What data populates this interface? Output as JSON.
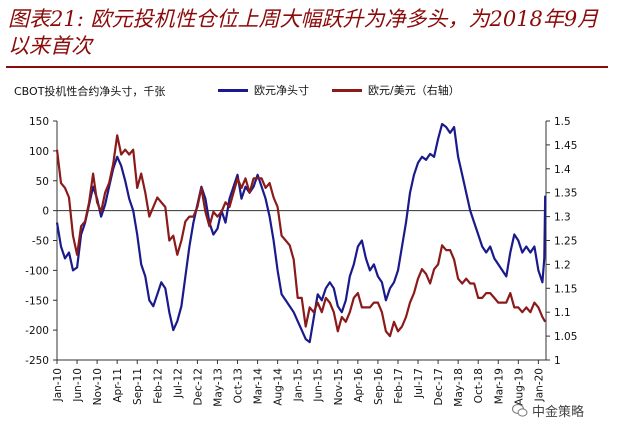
{
  "header": {
    "title": "图表21: 欧元投机性仓位上周大幅跃升为净多头，为2018年9月以来首次"
  },
  "legend_items": [
    {
      "label": "欧元净头寸",
      "color": "#1a1a8c"
    },
    {
      "label": "欧元/美元（右轴）",
      "color": "#8b1a1a"
    }
  ],
  "watermark": {
    "text": "中金策略",
    "icon": "wechat-icon"
  },
  "chart_data": {
    "type": "line",
    "title": "图表21: 欧元投机性仓位上周大幅跃升为净多头，为2018年9月以来首次",
    "ylabel": "CBOT投机性合约净头寸，千张",
    "y2label": "",
    "ylim": [
      -250,
      150
    ],
    "y2lim": [
      1.0,
      1.5
    ],
    "yticks": [
      150,
      100,
      50,
      0,
      -50,
      -100,
      -150,
      -200,
      -250
    ],
    "y2ticks": [
      1.5,
      1.45,
      1.4,
      1.35,
      1.3,
      1.25,
      1.2,
      1.15,
      1.1,
      1.05,
      1
    ],
    "x_range": [
      "2010-01",
      "2020-02"
    ],
    "x_tick_labels": [
      "Jan-10",
      "Jun-10",
      "Nov-10",
      "Apr-11",
      "Sep-11",
      "Feb-12",
      "Jul-12",
      "Dec-12",
      "May-13",
      "Oct-13",
      "Mar-14",
      "Aug-14",
      "Jan-15",
      "Jun-15",
      "Nov-15",
      "Apr-16",
      "Sep-16",
      "Feb-17",
      "Jul-17",
      "Dec-17",
      "May-18",
      "Oct-18",
      "Mar-19",
      "Aug-19",
      "Jan-20"
    ],
    "grid": false,
    "legend_position": "top",
    "series": [
      {
        "name": "欧元净头寸",
        "axis": "left",
        "color": "#1a1a8c",
        "points": [
          [
            "2010-01",
            -20
          ],
          [
            "2010-02",
            -60
          ],
          [
            "2010-03",
            -80
          ],
          [
            "2010-04",
            -70
          ],
          [
            "2010-05",
            -100
          ],
          [
            "2010-06",
            -95
          ],
          [
            "2010-07",
            -40
          ],
          [
            "2010-08",
            -20
          ],
          [
            "2010-09",
            10
          ],
          [
            "2010-10",
            40
          ],
          [
            "2010-11",
            20
          ],
          [
            "2010-12",
            -10
          ],
          [
            "2011-01",
            10
          ],
          [
            "2011-02",
            40
          ],
          [
            "2011-03",
            70
          ],
          [
            "2011-04",
            90
          ],
          [
            "2011-05",
            75
          ],
          [
            "2011-06",
            50
          ],
          [
            "2011-07",
            20
          ],
          [
            "2011-08",
            0
          ],
          [
            "2011-09",
            -40
          ],
          [
            "2011-10",
            -90
          ],
          [
            "2011-11",
            -110
          ],
          [
            "2011-12",
            -150
          ],
          [
            "2012-01",
            -160
          ],
          [
            "2012-02",
            -140
          ],
          [
            "2012-03",
            -120
          ],
          [
            "2012-04",
            -130
          ],
          [
            "2012-05",
            -170
          ],
          [
            "2012-06",
            -200
          ],
          [
            "2012-07",
            -185
          ],
          [
            "2012-08",
            -160
          ],
          [
            "2012-09",
            -110
          ],
          [
            "2012-10",
            -60
          ],
          [
            "2012-11",
            -20
          ],
          [
            "2012-12",
            10
          ],
          [
            "2013-01",
            40
          ],
          [
            "2013-02",
            20
          ],
          [
            "2013-03",
            -20
          ],
          [
            "2013-04",
            -40
          ],
          [
            "2013-05",
            -30
          ],
          [
            "2013-06",
            0
          ],
          [
            "2013-07",
            -20
          ],
          [
            "2013-08",
            20
          ],
          [
            "2013-09",
            40
          ],
          [
            "2013-10",
            60
          ],
          [
            "2013-11",
            20
          ],
          [
            "2013-12",
            40
          ],
          [
            "2014-01",
            30
          ],
          [
            "2014-02",
            40
          ],
          [
            "2014-03",
            60
          ],
          [
            "2014-04",
            40
          ],
          [
            "2014-05",
            20
          ],
          [
            "2014-06",
            -10
          ],
          [
            "2014-07",
            -50
          ],
          [
            "2014-08",
            -100
          ],
          [
            "2014-09",
            -140
          ],
          [
            "2014-10",
            -150
          ],
          [
            "2014-11",
            -160
          ],
          [
            "2014-12",
            -170
          ],
          [
            "2015-01",
            -185
          ],
          [
            "2015-02",
            -200
          ],
          [
            "2015-03",
            -215
          ],
          [
            "2015-04",
            -220
          ],
          [
            "2015-05",
            -180
          ],
          [
            "2015-06",
            -140
          ],
          [
            "2015-07",
            -150
          ],
          [
            "2015-08",
            -130
          ],
          [
            "2015-09",
            -120
          ],
          [
            "2015-10",
            -130
          ],
          [
            "2015-11",
            -160
          ],
          [
            "2015-12",
            -170
          ],
          [
            "2016-01",
            -150
          ],
          [
            "2016-02",
            -110
          ],
          [
            "2016-03",
            -90
          ],
          [
            "2016-04",
            -60
          ],
          [
            "2016-05",
            -50
          ],
          [
            "2016-06",
            -80
          ],
          [
            "2016-07",
            -100
          ],
          [
            "2016-08",
            -90
          ],
          [
            "2016-09",
            -110
          ],
          [
            "2016-10",
            -120
          ],
          [
            "2016-11",
            -150
          ],
          [
            "2016-12",
            -130
          ],
          [
            "2017-01",
            -120
          ],
          [
            "2017-02",
            -100
          ],
          [
            "2017-03",
            -60
          ],
          [
            "2017-04",
            -20
          ],
          [
            "2017-05",
            30
          ],
          [
            "2017-06",
            60
          ],
          [
            "2017-07",
            80
          ],
          [
            "2017-08",
            90
          ],
          [
            "2017-09",
            85
          ],
          [
            "2017-10",
            95
          ],
          [
            "2017-11",
            90
          ],
          [
            "2017-12",
            120
          ],
          [
            "2018-01",
            145
          ],
          [
            "2018-02",
            140
          ],
          [
            "2018-03",
            130
          ],
          [
            "2018-04",
            140
          ],
          [
            "2018-05",
            90
          ],
          [
            "2018-06",
            60
          ],
          [
            "2018-07",
            30
          ],
          [
            "2018-08",
            0
          ],
          [
            "2018-09",
            -20
          ],
          [
            "2018-10",
            -40
          ],
          [
            "2018-11",
            -60
          ],
          [
            "2018-12",
            -70
          ],
          [
            "2019-01",
            -60
          ],
          [
            "2019-02",
            -80
          ],
          [
            "2019-03",
            -90
          ],
          [
            "2019-04",
            -100
          ],
          [
            "2019-05",
            -110
          ],
          [
            "2019-06",
            -70
          ],
          [
            "2019-07",
            -40
          ],
          [
            "2019-08",
            -50
          ],
          [
            "2019-09",
            -70
          ],
          [
            "2019-10",
            -60
          ],
          [
            "2019-11",
            -70
          ],
          [
            "2019-12",
            -60
          ],
          [
            "2020-01",
            -100
          ],
          [
            "2020-02",
            -120
          ],
          [
            "2020-02-15",
            -80
          ],
          [
            "2020-02-22",
            25
          ]
        ]
      },
      {
        "name": "欧元/美元（右轴）",
        "axis": "right",
        "color": "#8b1a1a",
        "points": [
          [
            "2010-01",
            1.44
          ],
          [
            "2010-02",
            1.37
          ],
          [
            "2010-03",
            1.36
          ],
          [
            "2010-04",
            1.34
          ],
          [
            "2010-05",
            1.26
          ],
          [
            "2010-06",
            1.22
          ],
          [
            "2010-07",
            1.28
          ],
          [
            "2010-08",
            1.29
          ],
          [
            "2010-09",
            1.33
          ],
          [
            "2010-10",
            1.39
          ],
          [
            "2010-11",
            1.33
          ],
          [
            "2010-12",
            1.31
          ],
          [
            "2011-01",
            1.35
          ],
          [
            "2011-02",
            1.37
          ],
          [
            "2011-03",
            1.41
          ],
          [
            "2011-04",
            1.47
          ],
          [
            "2011-05",
            1.43
          ],
          [
            "2011-06",
            1.44
          ],
          [
            "2011-07",
            1.43
          ],
          [
            "2011-08",
            1.44
          ],
          [
            "2011-09",
            1.36
          ],
          [
            "2011-10",
            1.39
          ],
          [
            "2011-11",
            1.35
          ],
          [
            "2011-12",
            1.3
          ],
          [
            "2012-01",
            1.32
          ],
          [
            "2012-02",
            1.34
          ],
          [
            "2012-03",
            1.33
          ],
          [
            "2012-04",
            1.32
          ],
          [
            "2012-05",
            1.25
          ],
          [
            "2012-06",
            1.26
          ],
          [
            "2012-07",
            1.22
          ],
          [
            "2012-08",
            1.25
          ],
          [
            "2012-09",
            1.29
          ],
          [
            "2012-10",
            1.3
          ],
          [
            "2012-11",
            1.3
          ],
          [
            "2012-12",
            1.32
          ],
          [
            "2013-01",
            1.36
          ],
          [
            "2013-02",
            1.31
          ],
          [
            "2013-03",
            1.28
          ],
          [
            "2013-04",
            1.31
          ],
          [
            "2013-05",
            1.3
          ],
          [
            "2013-06",
            1.31
          ],
          [
            "2013-07",
            1.33
          ],
          [
            "2013-08",
            1.32
          ],
          [
            "2013-09",
            1.35
          ],
          [
            "2013-10",
            1.38
          ],
          [
            "2013-11",
            1.36
          ],
          [
            "2013-12",
            1.38
          ],
          [
            "2014-01",
            1.35
          ],
          [
            "2014-02",
            1.38
          ],
          [
            "2014-03",
            1.38
          ],
          [
            "2014-04",
            1.38
          ],
          [
            "2014-05",
            1.36
          ],
          [
            "2014-06",
            1.37
          ],
          [
            "2014-07",
            1.34
          ],
          [
            "2014-08",
            1.32
          ],
          [
            "2014-09",
            1.26
          ],
          [
            "2014-10",
            1.25
          ],
          [
            "2014-11",
            1.24
          ],
          [
            "2014-12",
            1.21
          ],
          [
            "2015-01",
            1.13
          ],
          [
            "2015-02",
            1.13
          ],
          [
            "2015-03",
            1.07
          ],
          [
            "2015-04",
            1.11
          ],
          [
            "2015-05",
            1.1
          ],
          [
            "2015-06",
            1.12
          ],
          [
            "2015-07",
            1.1
          ],
          [
            "2015-08",
            1.13
          ],
          [
            "2015-09",
            1.12
          ],
          [
            "2015-10",
            1.1
          ],
          [
            "2015-11",
            1.06
          ],
          [
            "2015-12",
            1.09
          ],
          [
            "2016-01",
            1.08
          ],
          [
            "2016-02",
            1.1
          ],
          [
            "2016-03",
            1.13
          ],
          [
            "2016-04",
            1.14
          ],
          [
            "2016-05",
            1.11
          ],
          [
            "2016-06",
            1.11
          ],
          [
            "2016-07",
            1.11
          ],
          [
            "2016-08",
            1.12
          ],
          [
            "2016-09",
            1.12
          ],
          [
            "2016-10",
            1.1
          ],
          [
            "2016-11",
            1.06
          ],
          [
            "2016-12",
            1.05
          ],
          [
            "2017-01",
            1.08
          ],
          [
            "2017-02",
            1.06
          ],
          [
            "2017-03",
            1.07
          ],
          [
            "2017-04",
            1.09
          ],
          [
            "2017-05",
            1.12
          ],
          [
            "2017-06",
            1.14
          ],
          [
            "2017-07",
            1.17
          ],
          [
            "2017-08",
            1.19
          ],
          [
            "2017-09",
            1.18
          ],
          [
            "2017-10",
            1.16
          ],
          [
            "2017-11",
            1.19
          ],
          [
            "2017-12",
            1.2
          ],
          [
            "2018-01",
            1.24
          ],
          [
            "2018-02",
            1.23
          ],
          [
            "2018-03",
            1.23
          ],
          [
            "2018-04",
            1.21
          ],
          [
            "2018-05",
            1.17
          ],
          [
            "2018-06",
            1.16
          ],
          [
            "2018-07",
            1.17
          ],
          [
            "2018-08",
            1.16
          ],
          [
            "2018-09",
            1.16
          ],
          [
            "2018-10",
            1.13
          ],
          [
            "2018-11",
            1.13
          ],
          [
            "2018-12",
            1.14
          ],
          [
            "2019-01",
            1.14
          ],
          [
            "2019-02",
            1.13
          ],
          [
            "2019-03",
            1.12
          ],
          [
            "2019-04",
            1.12
          ],
          [
            "2019-05",
            1.12
          ],
          [
            "2019-06",
            1.14
          ],
          [
            "2019-07",
            1.11
          ],
          [
            "2019-08",
            1.11
          ],
          [
            "2019-09",
            1.1
          ],
          [
            "2019-10",
            1.11
          ],
          [
            "2019-11",
            1.1
          ],
          [
            "2019-12",
            1.12
          ],
          [
            "2020-01",
            1.11
          ],
          [
            "2020-02",
            1.09
          ],
          [
            "2020-02-22",
            1.08
          ]
        ]
      }
    ]
  }
}
